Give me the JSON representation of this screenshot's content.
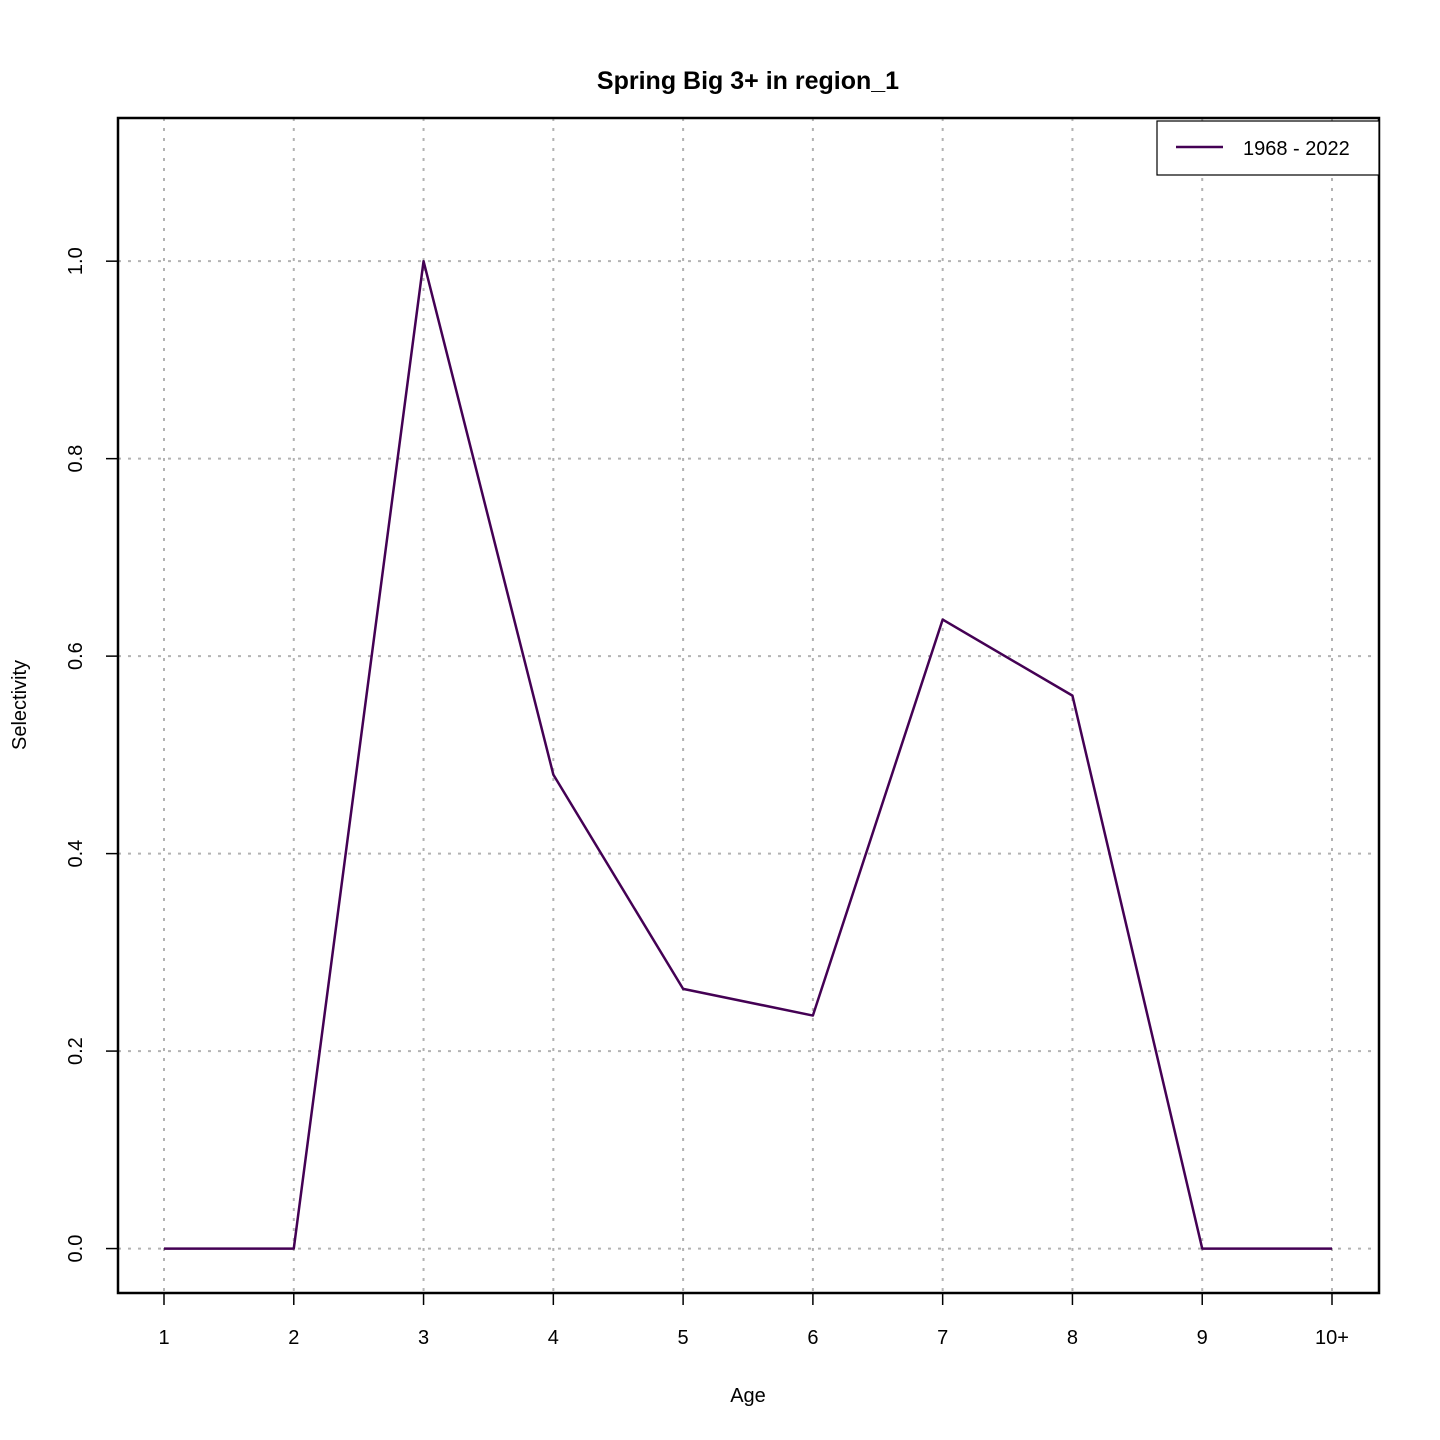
{
  "chart_data": {
    "type": "line",
    "title": "Spring Big 3+ in region_1",
    "xlabel": "Age",
    "ylabel": "Selectivity",
    "categories": [
      "1",
      "2",
      "3",
      "4",
      "5",
      "6",
      "7",
      "8",
      "9",
      "10+"
    ],
    "y_ticks": [
      "0.0",
      "0.2",
      "0.4",
      "0.6",
      "0.8",
      "1.0"
    ],
    "ylim": [
      -0.045,
      1.145
    ],
    "grid": true,
    "legend_position": "top-right",
    "series": [
      {
        "name": "1968 - 2022",
        "color": "#440154",
        "values": [
          0,
          0,
          1.0,
          0.48,
          0.263,
          0.236,
          0.637,
          0.56,
          0,
          0
        ]
      }
    ]
  }
}
